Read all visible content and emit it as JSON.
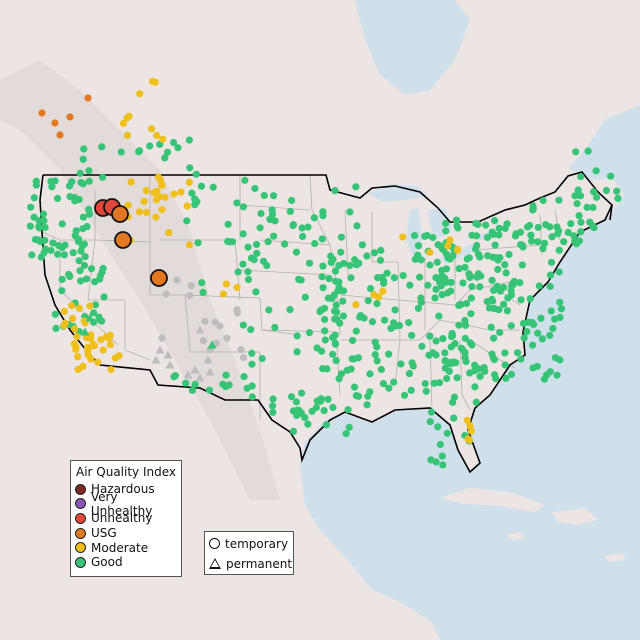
{
  "legend": {
    "title": "Air Quality Index",
    "categories": [
      {
        "label": "Hazardous",
        "color": "#7e2a22"
      },
      {
        "label": "Very Unhealthy",
        "color": "#8b54b5"
      },
      {
        "label": "Unhealthy",
        "color": "#e4473a"
      },
      {
        "label": "USG",
        "color": "#e37823"
      },
      {
        "label": "Moderate",
        "color": "#efc01c"
      },
      {
        "label": "Good",
        "color": "#37c477"
      }
    ],
    "shapes": [
      {
        "label": "temporary",
        "shape": "circle"
      },
      {
        "label": "permanent",
        "shape": "triangle"
      }
    ]
  },
  "colors": {
    "ocean": "#cfe0ea",
    "land": "#ece5e3",
    "mountains": "#ddd6d4",
    "state_borders": "#b4aeac",
    "country_border": "#000000",
    "no_data": "#bdbdbd"
  },
  "icons": {
    "temporary_monitor": "circle-icon",
    "permanent_monitor": "triangle-icon"
  }
}
